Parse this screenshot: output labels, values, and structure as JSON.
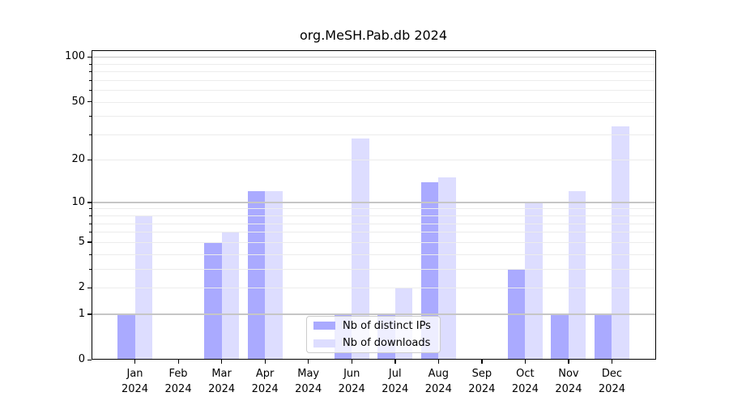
{
  "title": "org.MeSH.Pab.db 2024",
  "chart_data": {
    "type": "bar",
    "title": "org.MeSH.Pab.db 2024",
    "categories": [
      "Jan",
      "Feb",
      "Mar",
      "Apr",
      "May",
      "Jun",
      "Jul",
      "Aug",
      "Sep",
      "Oct",
      "Nov",
      "Dec"
    ],
    "category_sublabel": "2024",
    "series": [
      {
        "name": "Nb of distinct IPs",
        "color": "#aaaaff",
        "values": [
          1,
          0,
          5,
          12,
          0,
          1,
          1,
          14,
          0,
          3,
          1,
          1
        ]
      },
      {
        "name": "Nb of downloads",
        "color": "#ddddff",
        "values": [
          8,
          0,
          6,
          12,
          0,
          28,
          2,
          15,
          0,
          10,
          12,
          34
        ]
      }
    ],
    "yscale": "log1p",
    "ylim": [
      0,
      110
    ],
    "y_tick_values": [
      0,
      1,
      2,
      5,
      10,
      20,
      50,
      100
    ],
    "y_tick_labels": [
      "0",
      "1",
      "2",
      "5",
      "10",
      "20",
      "50",
      "100"
    ],
    "y_minor_tick_values": [
      3,
      4,
      6,
      7,
      8,
      9,
      30,
      40,
      60,
      70,
      80,
      90
    ],
    "grid": "on",
    "major_grid_values": [
      1,
      10,
      100
    ],
    "minor_grid_values": [
      2,
      3,
      4,
      5,
      6,
      7,
      8,
      9,
      20,
      30,
      40,
      50,
      60,
      70,
      80,
      90
    ],
    "legend": {
      "position": "bottom-center",
      "entries": [
        "Nb of distinct IPs",
        "Nb of downloads"
      ]
    },
    "colors": {
      "distinct_ips_bar": "#aaaaff",
      "downloads_bar": "#ddddff",
      "major_grid": "#c6c6c6",
      "minor_grid": "#ececec",
      "spine": "#000000",
      "legend_border": "#cccccc"
    }
  }
}
